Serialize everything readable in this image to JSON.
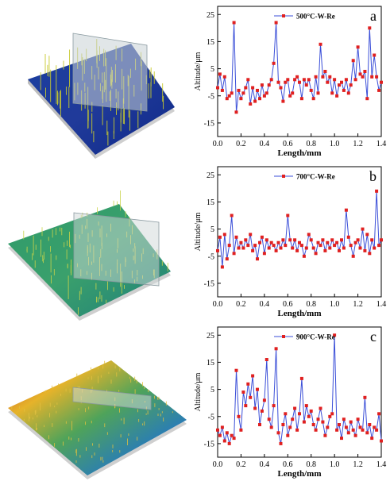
{
  "x_ticks": [
    "0.0",
    "0.2",
    "0.4",
    "0.6",
    "0.8",
    "1.0",
    "1.2",
    "1.4"
  ],
  "y_ticks": [
    "25",
    "15",
    "5",
    "-5",
    "-15"
  ],
  "colors": {
    "line": "#3b4fd8",
    "marker": "#e02020",
    "frame": "#000000"
  },
  "surfaces": [
    {
      "icon": "3d-surface-blue-icon"
    },
    {
      "icon": "3d-surface-green-icon"
    },
    {
      "icon": "3d-surface-multicolor-icon"
    }
  ],
  "chart_data": [
    {
      "type": "line",
      "panel_label": "a",
      "xlabel": "Length/mm",
      "ylabel": "Altitude/μm",
      "xlim": [
        0,
        1.4
      ],
      "ylim": [
        -20,
        28
      ],
      "legend_position": "top-center",
      "series": [
        {
          "name": "500°C-W-Re",
          "x": [
            0.0,
            0.02,
            0.04,
            0.06,
            0.08,
            0.1,
            0.12,
            0.14,
            0.16,
            0.18,
            0.2,
            0.22,
            0.24,
            0.26,
            0.28,
            0.3,
            0.32,
            0.34,
            0.36,
            0.38,
            0.4,
            0.42,
            0.44,
            0.46,
            0.48,
            0.5,
            0.52,
            0.54,
            0.56,
            0.58,
            0.6,
            0.62,
            0.64,
            0.66,
            0.68,
            0.7,
            0.72,
            0.74,
            0.76,
            0.78,
            0.8,
            0.82,
            0.84,
            0.86,
            0.88,
            0.9,
            0.92,
            0.94,
            0.96,
            0.98,
            1.0,
            1.02,
            1.04,
            1.06,
            1.08,
            1.1,
            1.12,
            1.14,
            1.16,
            1.18,
            1.2,
            1.22,
            1.24,
            1.26,
            1.28,
            1.3,
            1.32,
            1.34,
            1.36,
            1.38,
            1.4
          ],
          "y": [
            -2,
            3,
            -3,
            2,
            -6,
            -5,
            -4,
            22,
            -11,
            -3,
            -6,
            -4,
            -2,
            1,
            -8,
            -2,
            -7,
            -3,
            -6,
            -1,
            -5,
            -4,
            -1,
            1,
            7,
            22,
            0,
            -2,
            -7,
            0,
            1,
            -5,
            -4,
            1,
            2,
            0,
            -6,
            1,
            -1,
            1,
            -3,
            -6,
            2,
            -4,
            14,
            2,
            4,
            0,
            2,
            -4,
            1,
            -5,
            -1,
            0,
            -3,
            1,
            -4,
            -1,
            8,
            1,
            13,
            3,
            2,
            4,
            -6,
            20,
            2,
            10,
            2,
            -3,
            0
          ]
        }
      ]
    },
    {
      "type": "line",
      "panel_label": "b",
      "xlabel": "Length/mm",
      "ylabel": "Altitude/μm",
      "xlim": [
        0,
        1.4
      ],
      "ylim": [
        -20,
        28
      ],
      "legend_position": "top-center",
      "series": [
        {
          "name": "700°C-W-Re",
          "x": [
            0.0,
            0.02,
            0.04,
            0.06,
            0.08,
            0.1,
            0.12,
            0.14,
            0.16,
            0.18,
            0.2,
            0.22,
            0.24,
            0.26,
            0.28,
            0.3,
            0.32,
            0.34,
            0.36,
            0.38,
            0.4,
            0.42,
            0.44,
            0.46,
            0.48,
            0.5,
            0.52,
            0.54,
            0.56,
            0.58,
            0.6,
            0.62,
            0.64,
            0.66,
            0.68,
            0.7,
            0.72,
            0.74,
            0.76,
            0.78,
            0.8,
            0.82,
            0.84,
            0.86,
            0.88,
            0.9,
            0.92,
            0.94,
            0.96,
            0.98,
            1.0,
            1.02,
            1.04,
            1.06,
            1.08,
            1.1,
            1.12,
            1.14,
            1.16,
            1.18,
            1.2,
            1.22,
            1.24,
            1.26,
            1.28,
            1.3,
            1.32,
            1.34,
            1.36,
            1.38,
            1.4
          ],
          "y": [
            -3,
            2,
            -9,
            3,
            -6,
            -1,
            10,
            -4,
            2,
            -2,
            0,
            -2,
            1,
            -1,
            3,
            -3,
            -1,
            -6,
            0,
            2,
            -4,
            1,
            -2,
            0,
            -1,
            -3,
            0,
            -2,
            1,
            -1,
            10,
            1,
            -2,
            1,
            -3,
            0,
            -1,
            -5,
            -2,
            3,
            1,
            -2,
            -4,
            0,
            -1,
            1,
            -3,
            0,
            -2,
            1,
            -1,
            0,
            -3,
            1,
            -2,
            12,
            2,
            -1,
            -5,
            0,
            1,
            -2,
            5,
            -3,
            3,
            -4,
            1,
            -2,
            19,
            -1,
            1
          ]
        }
      ]
    },
    {
      "type": "line",
      "panel_label": "c",
      "xlabel": "Length/mm",
      "ylabel": "Altitude/μm",
      "xlim": [
        0,
        1.4
      ],
      "ylim": [
        -20,
        28
      ],
      "legend_position": "top-center",
      "series": [
        {
          "name": "900°C-W-Re",
          "x": [
            0.0,
            0.02,
            0.04,
            0.06,
            0.08,
            0.1,
            0.12,
            0.14,
            0.16,
            0.18,
            0.2,
            0.22,
            0.24,
            0.26,
            0.28,
            0.3,
            0.32,
            0.34,
            0.36,
            0.38,
            0.4,
            0.42,
            0.44,
            0.46,
            0.48,
            0.5,
            0.52,
            0.54,
            0.56,
            0.58,
            0.6,
            0.62,
            0.64,
            0.66,
            0.68,
            0.7,
            0.72,
            0.74,
            0.76,
            0.78,
            0.8,
            0.82,
            0.84,
            0.86,
            0.88,
            0.9,
            0.92,
            0.94,
            0.96,
            0.98,
            1.0,
            1.02,
            1.04,
            1.06,
            1.08,
            1.1,
            1.12,
            1.14,
            1.16,
            1.18,
            1.2,
            1.22,
            1.24,
            1.26,
            1.28,
            1.3,
            1.32,
            1.34,
            1.36,
            1.38,
            1.4
          ],
          "y": [
            -10,
            -12,
            -9,
            -14,
            -11,
            -15,
            -12,
            -13,
            12,
            -5,
            -10,
            4,
            -1,
            7,
            2,
            10,
            -2,
            5,
            -8,
            -3,
            1,
            16,
            -6,
            -9,
            -1,
            20,
            -11,
            -15,
            -8,
            -4,
            -12,
            -9,
            -6,
            -2,
            -10,
            -4,
            9,
            -7,
            -1,
            -5,
            -3,
            -8,
            -10,
            -6,
            -2,
            -7,
            -12,
            -9,
            -5,
            -4,
            25,
            -10,
            -8,
            -13,
            -6,
            -9,
            -11,
            -7,
            -10,
            -12,
            -6,
            -9,
            -10,
            2,
            -11,
            -8,
            -13,
            -9,
            -10,
            -4,
            -14
          ]
        }
      ]
    }
  ]
}
